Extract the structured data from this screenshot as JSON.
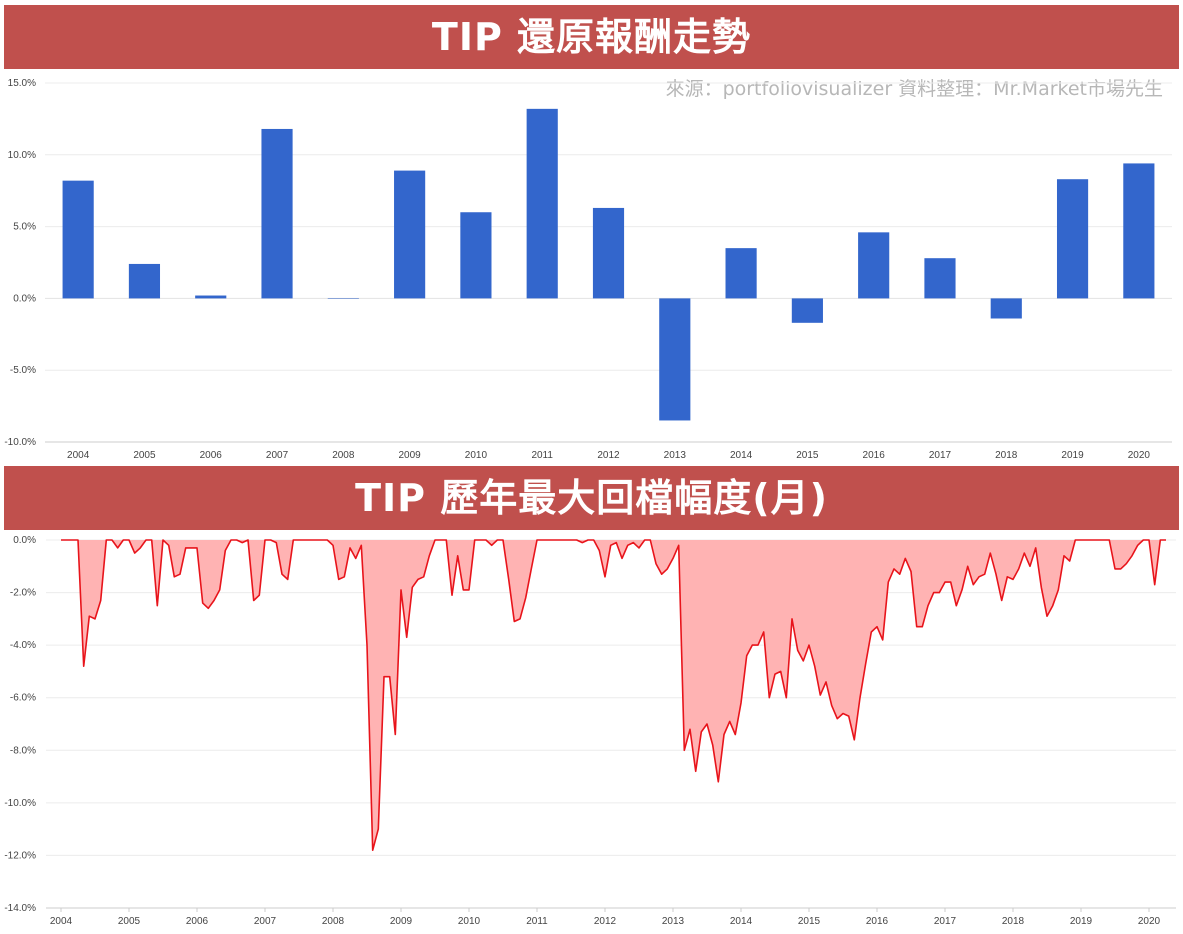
{
  "banners": {
    "top": "TIP 還原報酬走勢",
    "bottom": "TIP 歷年最大回檔幅度(月)"
  },
  "source_note": "來源：portfoliovisualizer 資料整理：Mr.Market市場先生",
  "colors": {
    "banner": "#c0504d",
    "bar": "#3366cc",
    "line": "#e8141b",
    "area": "#ffb3b3"
  },
  "chart_data": [
    {
      "type": "bar",
      "title": "",
      "categories": [
        "2004",
        "2005",
        "2006",
        "2007",
        "2008",
        "2009",
        "2010",
        "2011",
        "2012",
        "2013",
        "2014",
        "2015",
        "2016",
        "2017",
        "2018",
        "2019",
        "2020"
      ],
      "values": [
        8.2,
        2.4,
        0.2,
        11.8,
        0.0,
        8.9,
        6.0,
        13.2,
        6.3,
        -8.5,
        3.5,
        -1.7,
        4.6,
        2.8,
        -1.4,
        8.3,
        9.4
      ],
      "ylim": [
        -10,
        15
      ],
      "yticks": [
        "15.0%",
        "10.0%",
        "5.0%",
        "0.0%",
        "-5.0%",
        "-10.0%"
      ],
      "ytick_values": [
        15,
        10,
        5,
        0,
        -5,
        -10
      ],
      "grid": true,
      "legend": "none"
    },
    {
      "type": "area",
      "title": "",
      "x_labels": [
        "2004",
        "2005",
        "2006",
        "2007",
        "2008",
        "2009",
        "2010",
        "2011",
        "2012",
        "2013",
        "2014",
        "2015",
        "2016",
        "2017",
        "2018",
        "2019",
        "2020"
      ],
      "start": 2004.0,
      "step_months": 1,
      "values": [
        0,
        0,
        0,
        0,
        -4.8,
        -2.9,
        -3.0,
        -2.3,
        0,
        0,
        -0.3,
        0,
        0,
        -0.5,
        -0.3,
        0,
        0,
        -2.5,
        0,
        -0.2,
        -1.4,
        -1.3,
        -0.3,
        -0.3,
        -0.3,
        -2.4,
        -2.6,
        -2.3,
        -1.9,
        -0.4,
        0,
        0,
        -0.1,
        0,
        -2.3,
        -2.1,
        0,
        0,
        -0.1,
        -1.3,
        -1.5,
        0,
        0,
        0,
        0,
        0,
        0,
        0,
        -0.2,
        -1.5,
        -1.4,
        -0.3,
        -0.7,
        -0.2,
        -4.0,
        -11.8,
        -11.0,
        -5.2,
        -5.2,
        -7.4,
        -1.9,
        -3.7,
        -1.8,
        -1.5,
        -1.4,
        -0.6,
        0,
        0,
        0,
        -2.1,
        -0.6,
        -1.9,
        -1.9,
        0,
        0,
        0,
        -0.2,
        0,
        0,
        -1.5,
        -3.1,
        -3.0,
        -2.2,
        -1.1,
        0,
        0,
        0,
        0,
        0,
        0,
        0,
        0,
        -0.1,
        0,
        0,
        -0.4,
        -1.4,
        -0.2,
        -0.1,
        -0.7,
        -0.2,
        -0.1,
        -0.3,
        0,
        0,
        -0.9,
        -1.3,
        -1.1,
        -0.7,
        -0.2,
        -8.0,
        -7.2,
        -8.8,
        -7.3,
        -7.0,
        -7.8,
        -9.2,
        -7.4,
        -6.9,
        -7.4,
        -6.2,
        -4.4,
        -4.0,
        -4.0,
        -3.5,
        -6.0,
        -5.1,
        -5.0,
        -6.0,
        -3.0,
        -4.2,
        -4.6,
        -4.0,
        -4.8,
        -5.9,
        -5.4,
        -6.3,
        -6.8,
        -6.6,
        -6.7,
        -7.6,
        -6.0,
        -4.7,
        -3.5,
        -3.3,
        -3.8,
        -1.6,
        -1.1,
        -1.3,
        -0.7,
        -1.2,
        -3.3,
        -3.3,
        -2.5,
        -2.0,
        -2.0,
        -1.6,
        -1.6,
        -2.5,
        -1.9,
        -1.0,
        -1.7,
        -1.4,
        -1.3,
        -0.5,
        -1.3,
        -2.3,
        -1.4,
        -1.5,
        -1.1,
        -0.5,
        -1.0,
        -0.3,
        -1.8,
        -2.9,
        -2.5,
        -1.9,
        -0.6,
        -0.8,
        0,
        0,
        0,
        0,
        0,
        0,
        0,
        -1.1,
        -1.1,
        -0.9,
        -0.6,
        -0.2,
        0,
        0,
        -1.7,
        0,
        0
      ],
      "ylim": [
        -14,
        0
      ],
      "yticks": [
        "0.0%",
        "-2.0%",
        "-4.0%",
        "-6.0%",
        "-8.0%",
        "-10.0%",
        "-12.0%",
        "-14.0%"
      ],
      "ytick_values": [
        0,
        -2,
        -4,
        -6,
        -8,
        -10,
        -12,
        -14
      ],
      "grid": true,
      "legend": "none"
    }
  ]
}
